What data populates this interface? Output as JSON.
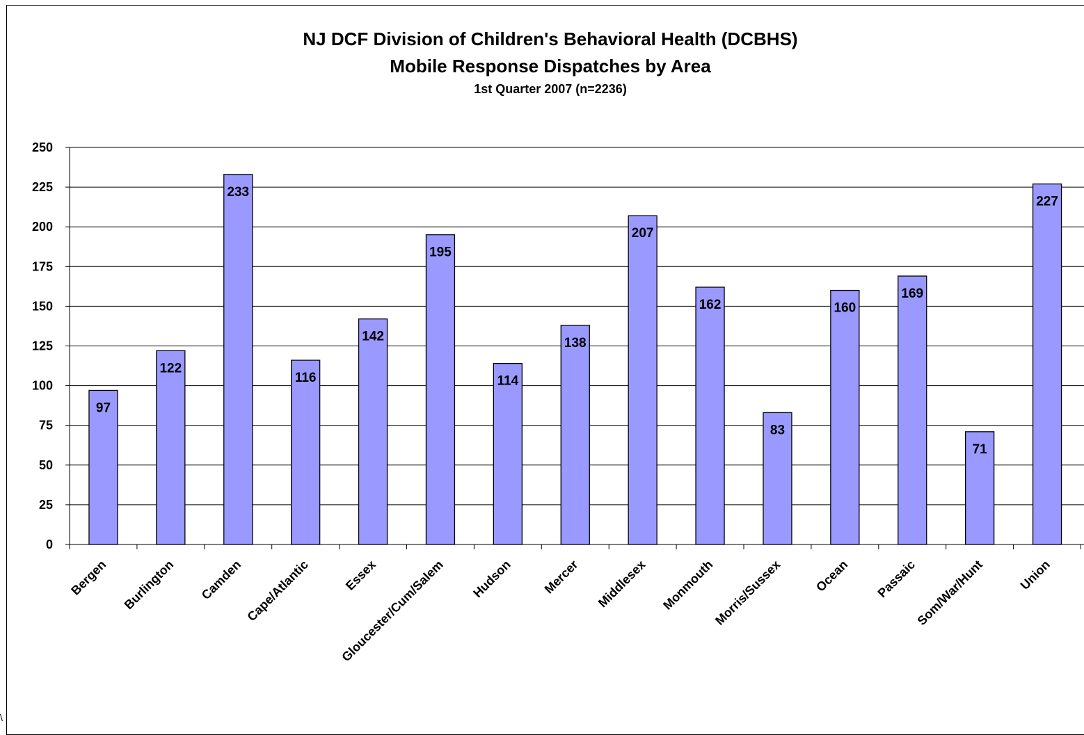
{
  "chart_data": {
    "type": "bar",
    "title": "NJ DCF Division of Children's Behavioral Health (DCBHS)",
    "subtitle": "Mobile Response Dispatches by Area",
    "subtitle2": "1st Quarter 2007 (n=2236)",
    "xlabel": "",
    "ylabel": "",
    "ylim": [
      0,
      250
    ],
    "yticks": [
      0,
      25,
      50,
      75,
      100,
      125,
      150,
      175,
      200,
      225,
      250
    ],
    "grid": true,
    "legend": "none",
    "bar_color": "#9999ff",
    "categories": [
      "Bergen",
      "Burlington",
      "Camden",
      "Cape/Atlantic",
      "Essex",
      "Gloucester/Cum/Salem",
      "Hudson",
      "Mercer",
      "Middlesex",
      "Monmouth",
      "Morris/Sussex",
      "Ocean",
      "Passaic",
      "Som/War/Hunt",
      "Union"
    ],
    "values": [
      97,
      122,
      233,
      116,
      142,
      195,
      114,
      138,
      207,
      162,
      83,
      160,
      169,
      71,
      227
    ]
  },
  "corner_text": "\\"
}
